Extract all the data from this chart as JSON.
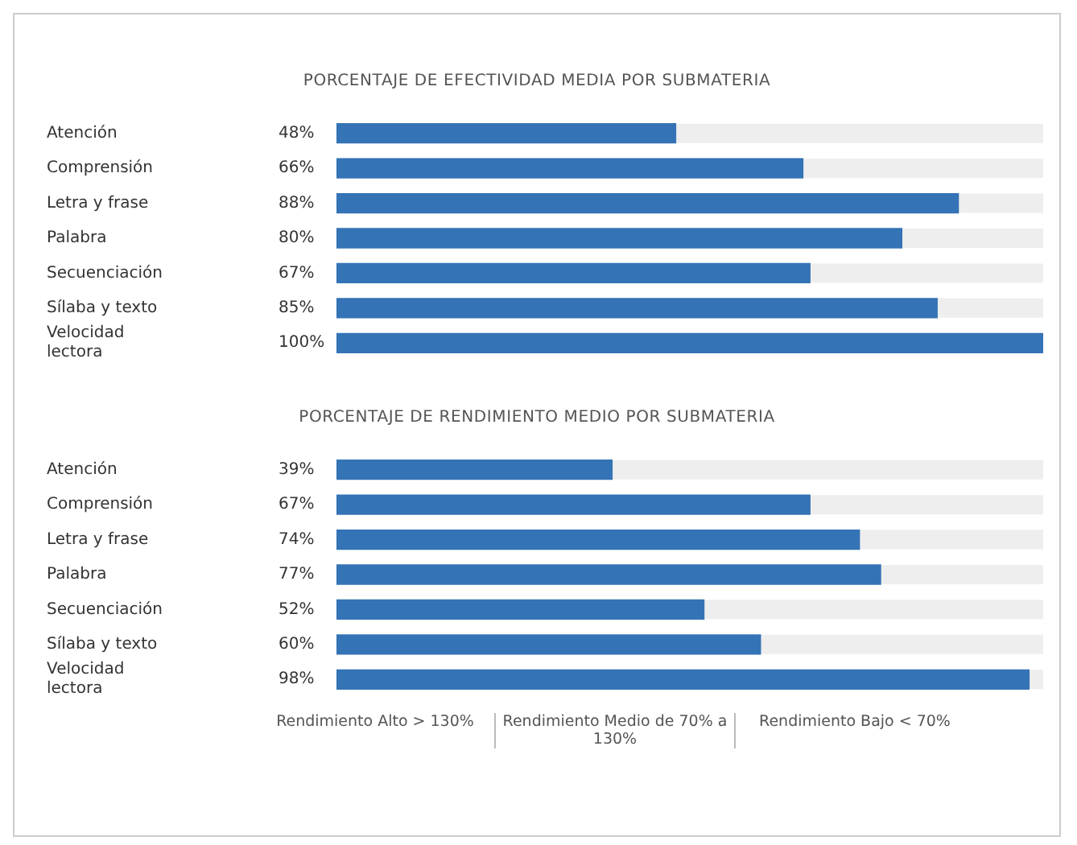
{
  "chart_data": [
    {
      "type": "bar",
      "orientation": "horizontal",
      "title": "PORCENTAJE DE EFECTIVIDAD MEDIA POR SUBMATERIA",
      "categories": [
        "Atención",
        "Comprensión",
        "Letra y frase",
        "Palabra",
        "Secuenciación",
        "Sílaba y texto",
        "Velocidad lectora"
      ],
      "values": [
        48,
        66,
        88,
        80,
        67,
        85,
        100
      ],
      "color": "#3473b5",
      "value_labels": [
        "48%",
        "66%",
        "88%",
        "80%",
        "67%",
        "85%",
        "100%"
      ],
      "tick_labels": "y",
      "grid": false,
      "legend": false,
      "bands": [
        {
          "axis": "x",
          "from": 0,
          "to": 100,
          "color": "#eeeeee"
        }
      ]
    },
    {
      "type": "bar",
      "orientation": "horizontal",
      "title": "PORCENTAJE DE RENDIMIENTO MEDIO POR SUBMATERIA",
      "categories": [
        "Atención",
        "Comprensión",
        "Letra y frase",
        "Palabra",
        "Secuenciación",
        "Sílaba y texto",
        "Velocidad lectora"
      ],
      "values": [
        39,
        67,
        74,
        77,
        52,
        60,
        98
      ],
      "color": "#3473b5",
      "value_labels": [
        "39%",
        "67%",
        "74%",
        "77%",
        "52%",
        "60%",
        "98%"
      ],
      "tick_labels": "y",
      "grid": false,
      "legend": false,
      "bands": [
        {
          "axis": "x",
          "from": 0,
          "to": 100,
          "color": "#eeeeee"
        }
      ],
      "annotations": [
        "Rendimiento Alto > 130%",
        "Rendimiento Medio de 70% a 130%",
        "Rendimiento Bajo < 70%"
      ]
    }
  ]
}
